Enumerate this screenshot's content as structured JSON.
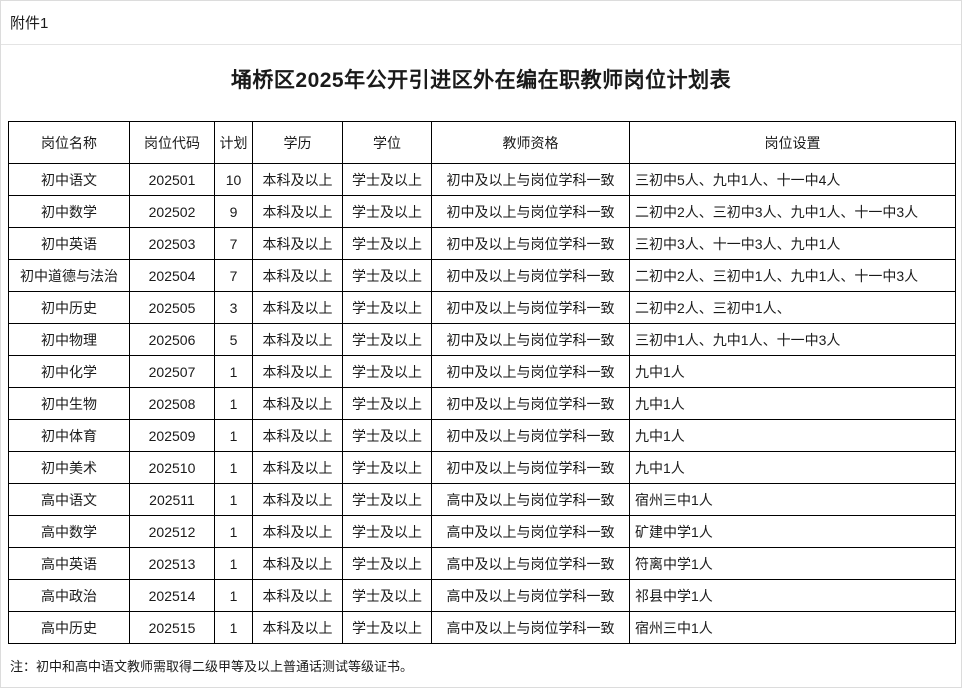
{
  "page": {
    "attachment_label": "附件1",
    "title": "埇桥区2025年公开引进区外在编在职教师岗位计划表",
    "note": "注：初中和高中语文教师需取得二级甲等及以上普通话测试等级证书。"
  },
  "table": {
    "columns": [
      "岗位名称",
      "岗位代码",
      "计划",
      "学历",
      "学位",
      "教师资格",
      "岗位设置"
    ],
    "rows": [
      [
        "初中语文",
        "202501",
        "10",
        "本科及以上",
        "学士及以上",
        "初中及以上与岗位学科一致",
        "三初中5人、九中1人、十一中4人"
      ],
      [
        "初中数学",
        "202502",
        "9",
        "本科及以上",
        "学士及以上",
        "初中及以上与岗位学科一致",
        "二初中2人、三初中3人、九中1人、十一中3人"
      ],
      [
        "初中英语",
        "202503",
        "7",
        "本科及以上",
        "学士及以上",
        "初中及以上与岗位学科一致",
        "三初中3人、十一中3人、九中1人"
      ],
      [
        "初中道德与法治",
        "202504",
        "7",
        "本科及以上",
        "学士及以上",
        "初中及以上与岗位学科一致",
        "二初中2人、三初中1人、九中1人、十一中3人"
      ],
      [
        "初中历史",
        "202505",
        "3",
        "本科及以上",
        "学士及以上",
        "初中及以上与岗位学科一致",
        "二初中2人、三初中1人、"
      ],
      [
        "初中物理",
        "202506",
        "5",
        "本科及以上",
        "学士及以上",
        "初中及以上与岗位学科一致",
        "三初中1人、九中1人、十一中3人"
      ],
      [
        "初中化学",
        "202507",
        "1",
        "本科及以上",
        "学士及以上",
        "初中及以上与岗位学科一致",
        "九中1人"
      ],
      [
        "初中生物",
        "202508",
        "1",
        "本科及以上",
        "学士及以上",
        "初中及以上与岗位学科一致",
        "九中1人"
      ],
      [
        "初中体育",
        "202509",
        "1",
        "本科及以上",
        "学士及以上",
        "初中及以上与岗位学科一致",
        "九中1人"
      ],
      [
        "初中美术",
        "202510",
        "1",
        "本科及以上",
        "学士及以上",
        "初中及以上与岗位学科一致",
        "九中1人"
      ],
      [
        "高中语文",
        "202511",
        "1",
        "本科及以上",
        "学士及以上",
        "高中及以上与岗位学科一致",
        "宿州三中1人"
      ],
      [
        "高中数学",
        "202512",
        "1",
        "本科及以上",
        "学士及以上",
        "高中及以上与岗位学科一致",
        "矿建中学1人"
      ],
      [
        "高中英语",
        "202513",
        "1",
        "本科及以上",
        "学士及以上",
        "高中及以上与岗位学科一致",
        "符离中学1人"
      ],
      [
        "高中政治",
        "202514",
        "1",
        "本科及以上",
        "学士及以上",
        "高中及以上与岗位学科一致",
        "祁县中学1人"
      ],
      [
        "高中历史",
        "202515",
        "1",
        "本科及以上",
        "学士及以上",
        "高中及以上与岗位学科一致",
        "宿州三中1人"
      ]
    ]
  },
  "colors": {
    "table_border": "#000000",
    "page_border": "#dcdcdc",
    "text": "#1a1a1a",
    "background": "#ffffff"
  }
}
